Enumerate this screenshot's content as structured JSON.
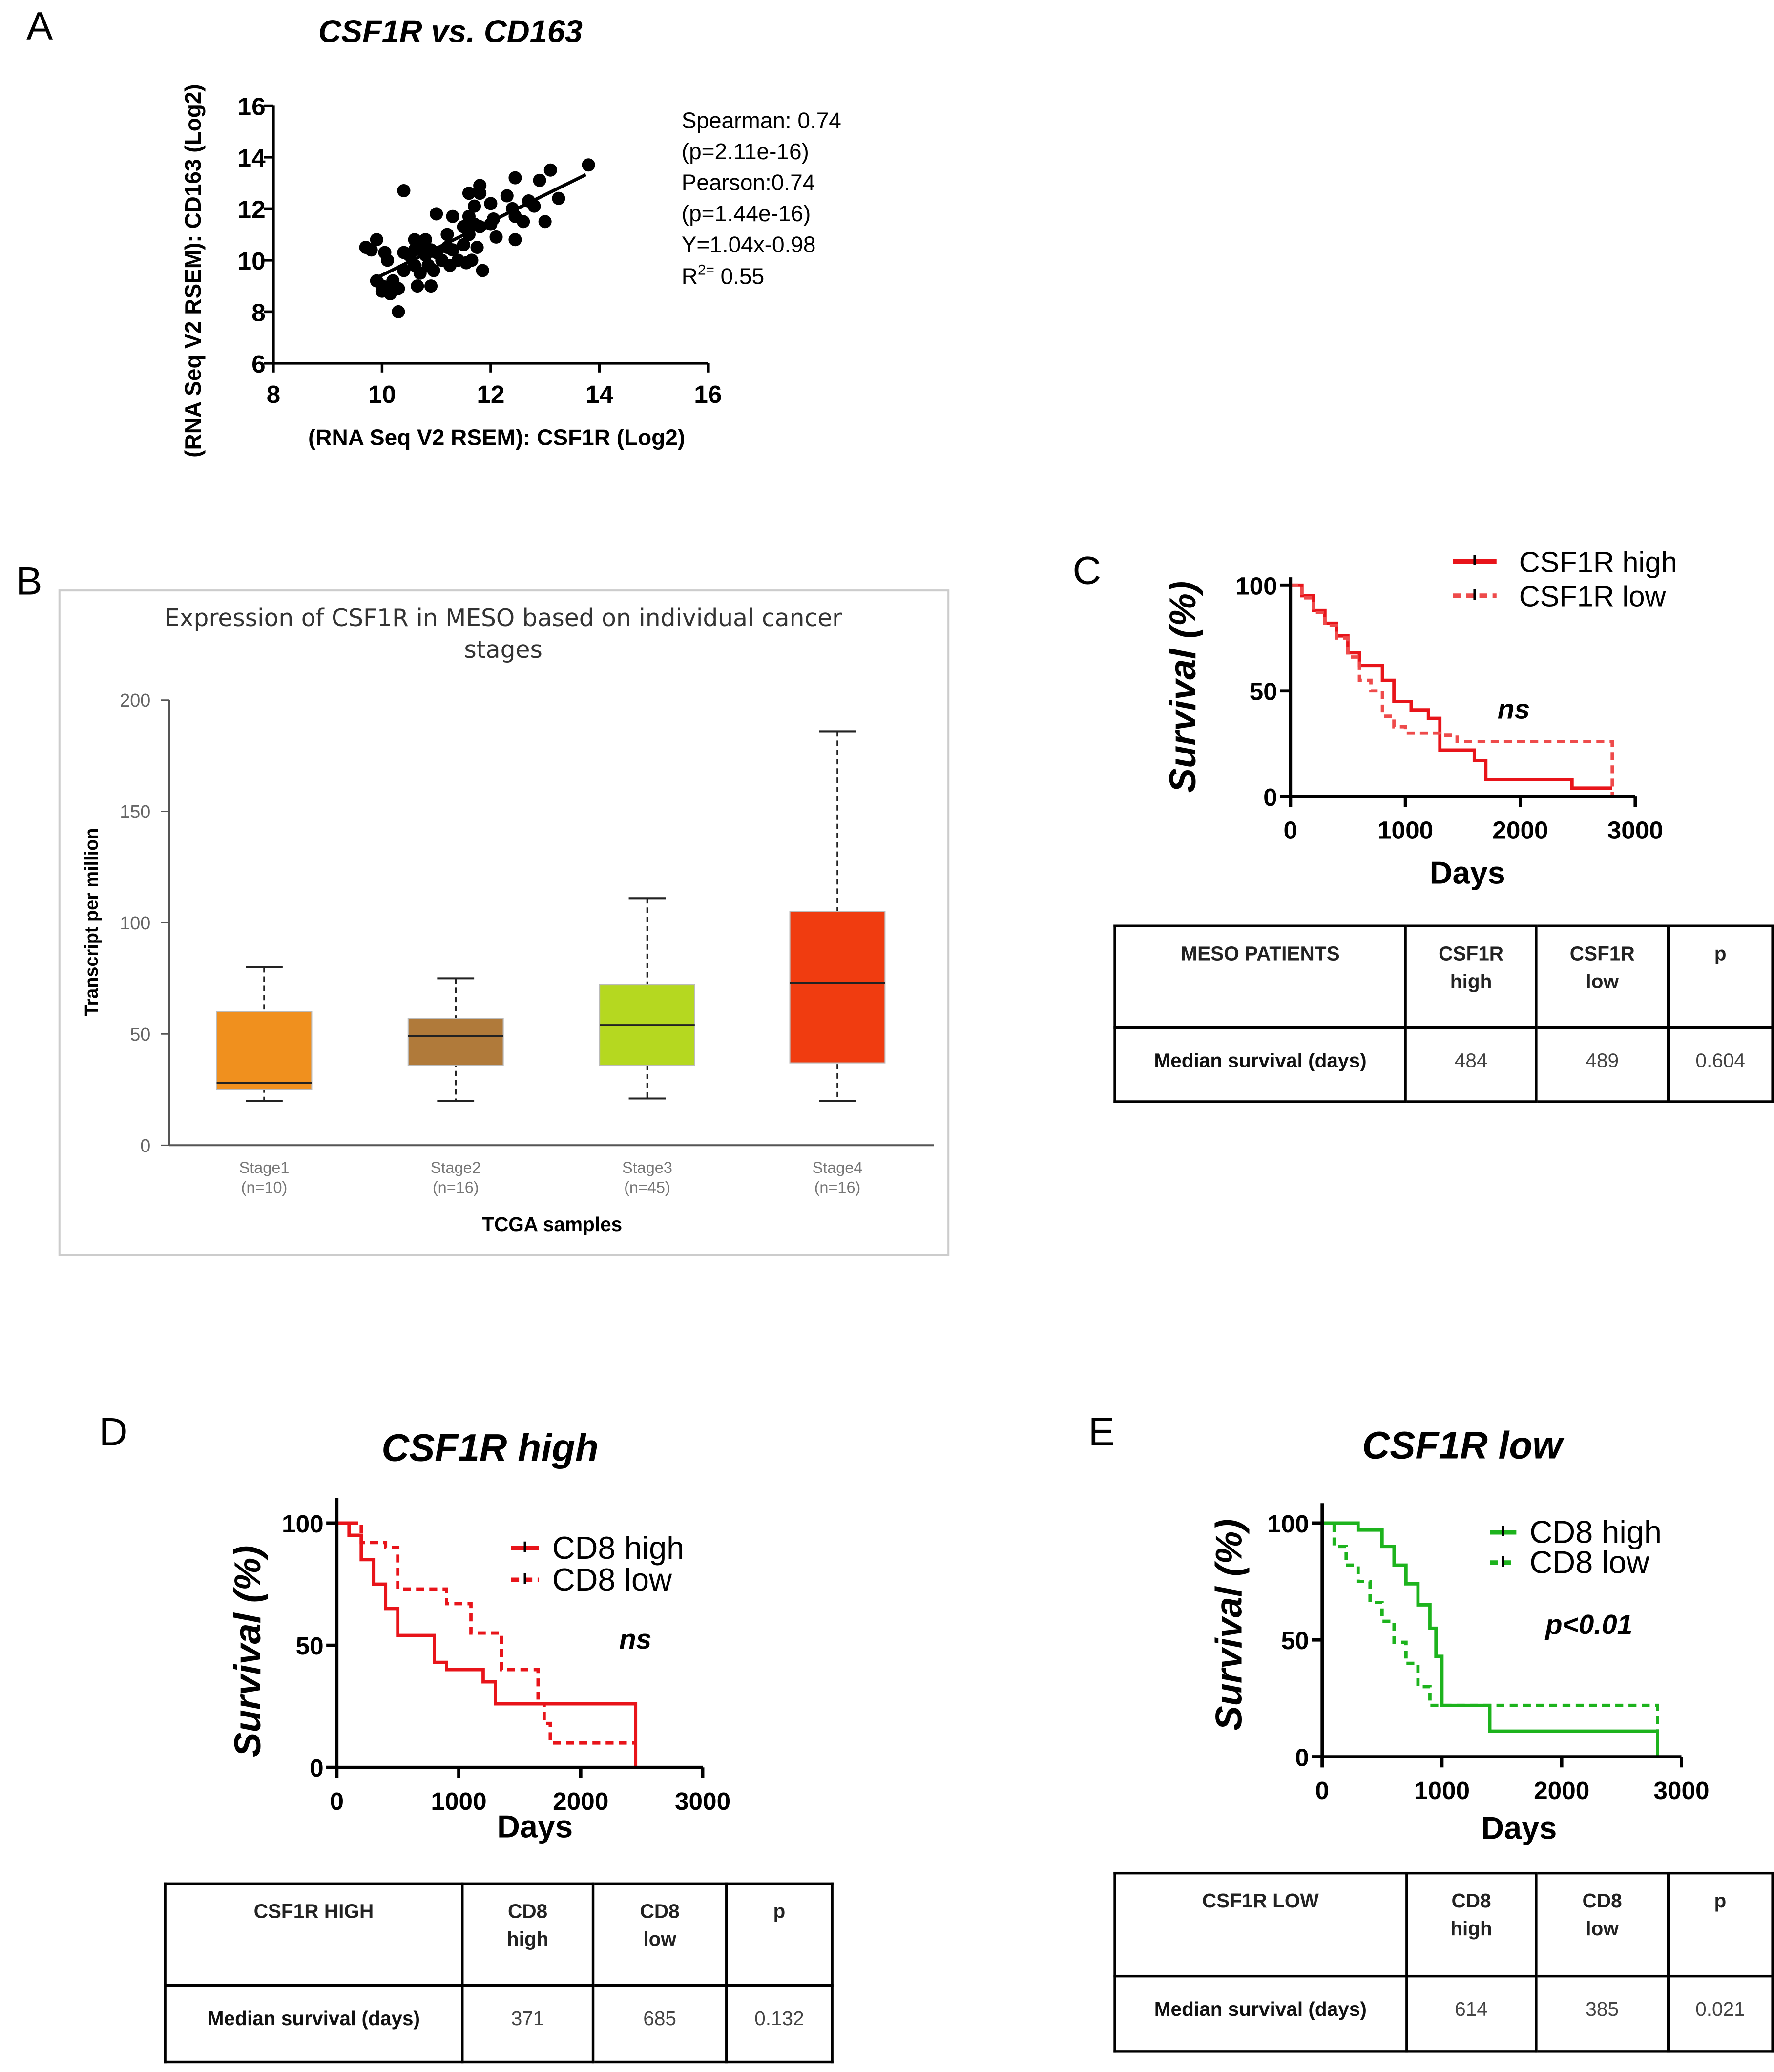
{
  "panels": {
    "A": "A",
    "B": "B",
    "C": "C",
    "D": "D",
    "E": "E"
  },
  "chart_data": [
    {
      "id": "A",
      "type": "scatter",
      "title": "CSF1R vs. CD163",
      "xlabel": "(RNA  Seq V2 RSEM): CSF1R (Log2)",
      "ylabel": "(RNA Seq V2 RSEM): CD163 (Log2)",
      "xlim": [
        8,
        16
      ],
      "ylim": [
        6,
        16
      ],
      "xticks": [
        8,
        10,
        12,
        14,
        16
      ],
      "yticks": [
        6,
        8,
        10,
        12,
        14,
        16
      ],
      "grid": false,
      "points": [
        [
          9.7,
          10.5
        ],
        [
          9.8,
          10.4
        ],
        [
          9.9,
          10.8
        ],
        [
          9.9,
          9.2
        ],
        [
          10.0,
          9.0
        ],
        [
          10.0,
          8.8
        ],
        [
          10.05,
          10.3
        ],
        [
          10.1,
          10.0
        ],
        [
          10.1,
          8.9
        ],
        [
          10.15,
          8.7
        ],
        [
          10.2,
          9.2
        ],
        [
          10.3,
          8.9
        ],
        [
          10.3,
          8.0
        ],
        [
          10.4,
          12.7
        ],
        [
          10.4,
          10.3
        ],
        [
          10.4,
          9.6
        ],
        [
          10.5,
          10.2
        ],
        [
          10.6,
          10.8
        ],
        [
          10.6,
          10.4
        ],
        [
          10.6,
          9.8
        ],
        [
          10.65,
          9.0
        ],
        [
          10.7,
          10.6
        ],
        [
          10.7,
          9.5
        ],
        [
          10.8,
          10.8
        ],
        [
          10.8,
          10.2
        ],
        [
          10.85,
          9.8
        ],
        [
          10.9,
          10.4
        ],
        [
          10.9,
          9.0
        ],
        [
          10.95,
          9.6
        ],
        [
          11.0,
          11.8
        ],
        [
          11.0,
          10.3
        ],
        [
          11.1,
          10.0
        ],
        [
          11.2,
          11.0
        ],
        [
          11.2,
          10.5
        ],
        [
          11.25,
          9.8
        ],
        [
          11.3,
          11.7
        ],
        [
          11.3,
          10.4
        ],
        [
          11.4,
          10.0
        ],
        [
          11.5,
          11.3
        ],
        [
          11.5,
          10.6
        ],
        [
          11.55,
          9.9
        ],
        [
          11.6,
          12.6
        ],
        [
          11.6,
          11.7
        ],
        [
          11.6,
          11.0
        ],
        [
          11.65,
          10.0
        ],
        [
          11.7,
          12.1
        ],
        [
          11.7,
          11.4
        ],
        [
          11.75,
          10.5
        ],
        [
          11.8,
          12.9
        ],
        [
          11.8,
          12.6
        ],
        [
          11.8,
          11.3
        ],
        [
          11.85,
          9.6
        ],
        [
          12.0,
          12.2
        ],
        [
          12.0,
          11.4
        ],
        [
          12.05,
          11.6
        ],
        [
          12.1,
          10.9
        ],
        [
          12.3,
          12.5
        ],
        [
          12.4,
          12.0
        ],
        [
          12.45,
          13.2
        ],
        [
          12.45,
          11.7
        ],
        [
          12.45,
          10.8
        ],
        [
          12.6,
          11.5
        ],
        [
          12.7,
          12.3
        ],
        [
          12.8,
          12.1
        ],
        [
          12.9,
          13.1
        ],
        [
          13.0,
          11.5
        ],
        [
          13.1,
          13.5
        ],
        [
          13.25,
          12.4
        ],
        [
          13.8,
          13.7
        ]
      ],
      "regression": {
        "slope": 1.04,
        "intercept": -0.98,
        "x_range": [
          9.8,
          13.75
        ]
      },
      "annotations": [
        "Spearman: 0.74",
        "(p=2.11e-16)",
        "Pearson:0.74",
        "(p=1.44e-16)",
        "Y=1.04x-0.98"
      ],
      "r2": {
        "base": "R",
        "sup": "2=",
        "value": " 0.55"
      }
    },
    {
      "id": "B",
      "type": "box",
      "title": [
        "Expression of CSF1R in MESO based on individual cancer",
        "stages"
      ],
      "xlabel": "TCGA samples",
      "ylabel": "Transcript per million",
      "ylim": [
        0,
        200
      ],
      "yticks": [
        0,
        50,
        100,
        150,
        200
      ],
      "categories": [
        {
          "label": "Stage1",
          "n": "(n=10)",
          "min": 20,
          "q1": 25,
          "median": 28,
          "q3": 60,
          "max": 80,
          "color": "#f0901e"
        },
        {
          "label": "Stage2",
          "n": "(n=16)",
          "min": 20,
          "q1": 36,
          "median": 49,
          "q3": 57,
          "max": 75,
          "color": "#b07a3a"
        },
        {
          "label": "Stage3",
          "n": "(n=45)",
          "min": 21,
          "q1": 36,
          "median": 54,
          "q3": 72,
          "max": 111,
          "color": "#b5d820"
        },
        {
          "label": "Stage4",
          "n": "(n=16)",
          "min": 20,
          "q1": 37,
          "median": 73,
          "q3": 105,
          "max": 186,
          "color": "#f03c10"
        }
      ]
    },
    {
      "id": "C",
      "type": "line",
      "title": "",
      "xlabel": "Days",
      "ylabel": "Survival (%)",
      "xlim": [
        0,
        3000
      ],
      "ylim": [
        0,
        100
      ],
      "xticks": [
        0,
        1000,
        2000,
        3000
      ],
      "yticks": [
        0,
        50,
        100
      ],
      "annotation": "ns",
      "legend": "top-right",
      "series": [
        {
          "name": "CSF1R high",
          "color": "#e8141a",
          "style": "solid",
          "points": [
            [
              0,
              100
            ],
            [
              100,
              95
            ],
            [
              200,
              88
            ],
            [
              300,
              82
            ],
            [
              400,
              76
            ],
            [
              500,
              68
            ],
            [
              600,
              62
            ],
            [
              700,
              62
            ],
            [
              800,
              55
            ],
            [
              900,
              45
            ],
            [
              1050,
              41
            ],
            [
              1200,
              37
            ],
            [
              1300,
              22
            ],
            [
              1600,
              17
            ],
            [
              1700,
              8
            ],
            [
              2450,
              4
            ],
            [
              2800,
              4
            ]
          ]
        },
        {
          "name": "CSF1R low",
          "color": "#ee4b4b",
          "style": "dashed",
          "points": [
            [
              0,
              100
            ],
            [
              100,
              94
            ],
            [
              200,
              87
            ],
            [
              300,
              81
            ],
            [
              400,
              75
            ],
            [
              500,
              66
            ],
            [
              600,
              55
            ],
            [
              700,
              50
            ],
            [
              800,
              38
            ],
            [
              900,
              33
            ],
            [
              1000,
              30
            ],
            [
              1300,
              29
            ],
            [
              1450,
              26
            ],
            [
              2800,
              26
            ],
            [
              2800,
              0
            ]
          ]
        }
      ]
    },
    {
      "id": "D",
      "type": "line",
      "title": "CSF1R high",
      "xlabel": "Days",
      "ylabel": "Survival (%)",
      "xlim": [
        0,
        3000
      ],
      "ylim": [
        0,
        100
      ],
      "xticks": [
        0,
        1000,
        2000,
        3000
      ],
      "yticks": [
        0,
        50,
        100
      ],
      "annotation": "ns",
      "legend": "top-right",
      "series": [
        {
          "name": "CD8 high",
          "color": "#e8141a",
          "style": "solid",
          "points": [
            [
              0,
              100
            ],
            [
              100,
              95
            ],
            [
              200,
              85
            ],
            [
              300,
              75
            ],
            [
              400,
              65
            ],
            [
              500,
              54
            ],
            [
              700,
              54
            ],
            [
              800,
              43
            ],
            [
              900,
              40
            ],
            [
              1100,
              40
            ],
            [
              1200,
              35
            ],
            [
              1300,
              26
            ],
            [
              2450,
              26
            ],
            [
              2450,
              0
            ]
          ]
        },
        {
          "name": "CD8 low",
          "color": "#e8141a",
          "style": "dashed",
          "points": [
            [
              0,
              100
            ],
            [
              200,
              92
            ],
            [
              400,
              90
            ],
            [
              500,
              73
            ],
            [
              800,
              73
            ],
            [
              900,
              67
            ],
            [
              1100,
              55
            ],
            [
              1300,
              55
            ],
            [
              1350,
              40
            ],
            [
              1600,
              40
            ],
            [
              1650,
              26
            ],
            [
              1700,
              18
            ],
            [
              1750,
              10
            ],
            [
              2450,
              10
            ]
          ]
        }
      ]
    },
    {
      "id": "E",
      "type": "line",
      "title": "CSF1R low",
      "xlabel": "Days",
      "ylabel": "Survival (%)",
      "xlim": [
        0,
        3000
      ],
      "ylim": [
        0,
        100
      ],
      "xticks": [
        0,
        1000,
        2000,
        3000
      ],
      "yticks": [
        0,
        50,
        100
      ],
      "annotation": "p<0.01",
      "legend": "top-right",
      "series": [
        {
          "name": "CD8 high",
          "color": "#1db31d",
          "style": "solid",
          "points": [
            [
              0,
              100
            ],
            [
              300,
              97
            ],
            [
              500,
              90
            ],
            [
              600,
              82
            ],
            [
              700,
              74
            ],
            [
              800,
              65
            ],
            [
              900,
              55
            ],
            [
              950,
              43
            ],
            [
              1000,
              22
            ],
            [
              1400,
              22
            ],
            [
              1400,
              11
            ],
            [
              2800,
              11
            ],
            [
              2800,
              0
            ]
          ]
        },
        {
          "name": "CD8 low",
          "color": "#1db31d",
          "style": "dashed",
          "points": [
            [
              0,
              100
            ],
            [
              100,
              90
            ],
            [
              200,
              82
            ],
            [
              300,
              75
            ],
            [
              400,
              66
            ],
            [
              500,
              58
            ],
            [
              600,
              49
            ],
            [
              700,
              40
            ],
            [
              800,
              30
            ],
            [
              900,
              22
            ],
            [
              2800,
              22
            ],
            [
              2800,
              0
            ]
          ]
        }
      ]
    }
  ],
  "tables": [
    {
      "id": "C",
      "headers": [
        [
          "MESO PATIENTS"
        ],
        [
          "CSF1R",
          "high"
        ],
        [
          "CSF1R",
          "low"
        ],
        [
          "p"
        ]
      ],
      "row": [
        "Median survival (days)",
        "484",
        "489",
        "0.604"
      ]
    },
    {
      "id": "D",
      "headers": [
        [
          "CSF1R HIGH"
        ],
        [
          "CD8",
          "high"
        ],
        [
          "CD8",
          "low"
        ],
        [
          "p"
        ]
      ],
      "row": [
        "Median survival (days)",
        "371",
        "685",
        "0.132"
      ]
    },
    {
      "id": "E",
      "headers": [
        [
          "CSF1R LOW"
        ],
        [
          "CD8",
          "high"
        ],
        [
          "CD8",
          "low"
        ],
        [
          "p"
        ]
      ],
      "row": [
        "Median survival (days)",
        "614",
        "385",
        "0.021"
      ]
    }
  ]
}
